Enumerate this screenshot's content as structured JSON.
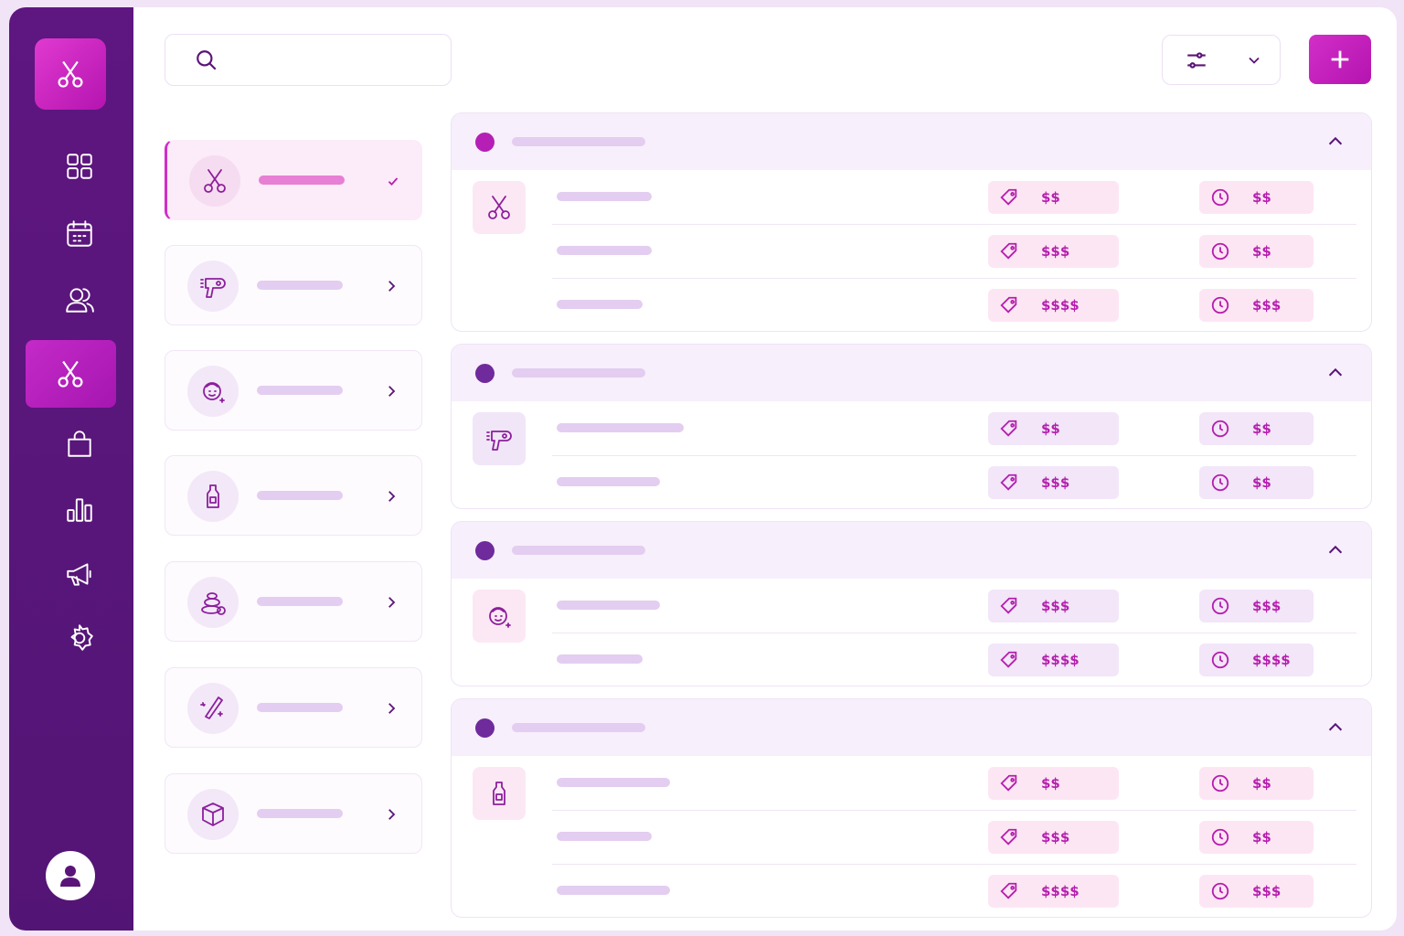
{
  "services": {
    "groups": [
      {
        "rows": [
          {
            "price": "$$",
            "duration": "$$"
          },
          {
            "price": "$$$",
            "duration": "$$"
          },
          {
            "price": "$$$$",
            "duration": "$$$"
          }
        ]
      },
      {
        "rows": [
          {
            "price": "$$",
            "duration": "$$"
          },
          {
            "price": "$$$",
            "duration": "$$"
          }
        ]
      },
      {
        "rows": [
          {
            "price": "$$$",
            "duration": "$$$"
          },
          {
            "price": "$$$$",
            "duration": "$$$$"
          }
        ]
      },
      {
        "rows": [
          {
            "price": "$$",
            "duration": "$$"
          },
          {
            "price": "$$$",
            "duration": "$$"
          },
          {
            "price": "$$$$",
            "duration": "$$$"
          }
        ]
      }
    ]
  }
}
